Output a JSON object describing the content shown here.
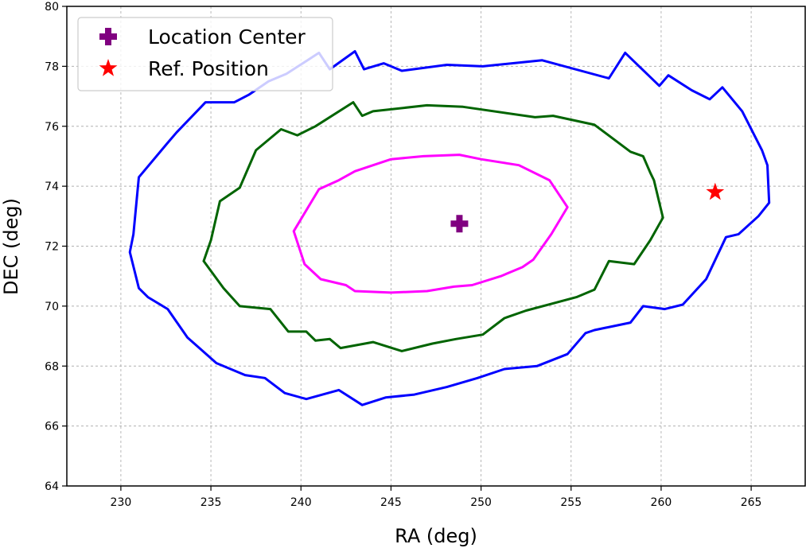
{
  "chart_data": {
    "type": "line",
    "title": "",
    "xlabel": "RA (deg)",
    "ylabel": "DEC (deg)",
    "xlim": [
      227,
      268
    ],
    "ylim": [
      64,
      80
    ],
    "xticks": [
      "230",
      "235",
      "240",
      "245",
      "250",
      "255",
      "260",
      "265"
    ],
    "yticks": [
      "64",
      "66",
      "68",
      "70",
      "72",
      "74",
      "76",
      "78",
      "80"
    ],
    "grid": true,
    "legend_position": "top-left",
    "series": [
      {
        "kind": "contour",
        "color": "#0000ff",
        "points": [
          [
            230.5,
            71.8
          ],
          [
            231.0,
            70.6
          ],
          [
            231.5,
            70.3
          ],
          [
            232.6,
            69.9
          ],
          [
            233.7,
            68.95
          ],
          [
            235.3,
            68.1
          ],
          [
            236.9,
            67.7
          ],
          [
            238.0,
            67.6
          ],
          [
            239.1,
            67.1
          ],
          [
            240.3,
            66.9
          ],
          [
            242.1,
            67.2
          ],
          [
            243.4,
            66.7
          ],
          [
            244.7,
            66.95
          ],
          [
            246.3,
            67.05
          ],
          [
            248.1,
            67.3
          ],
          [
            249.8,
            67.6
          ],
          [
            251.3,
            67.9
          ],
          [
            253.1,
            68.0
          ],
          [
            254.8,
            68.4
          ],
          [
            255.8,
            69.1
          ],
          [
            256.3,
            69.2
          ],
          [
            258.3,
            69.45
          ],
          [
            259.0,
            70.0
          ],
          [
            260.2,
            69.9
          ],
          [
            261.2,
            70.05
          ],
          [
            262.5,
            70.9
          ],
          [
            263.6,
            72.3
          ],
          [
            264.3,
            72.4
          ],
          [
            265.4,
            73.0
          ],
          [
            266.0,
            73.45
          ],
          [
            265.9,
            74.7
          ],
          [
            265.6,
            75.2
          ],
          [
            264.5,
            76.5
          ],
          [
            263.4,
            77.3
          ],
          [
            262.7,
            76.9
          ],
          [
            261.7,
            77.2
          ],
          [
            260.4,
            77.7
          ],
          [
            259.9,
            77.35
          ],
          [
            258.0,
            78.45
          ],
          [
            257.1,
            77.6
          ],
          [
            253.4,
            78.2
          ],
          [
            250.1,
            78.0
          ],
          [
            248.1,
            78.05
          ],
          [
            245.6,
            77.85
          ],
          [
            244.6,
            78.1
          ],
          [
            243.5,
            77.9
          ],
          [
            243.0,
            78.5
          ],
          [
            241.6,
            77.9
          ],
          [
            241.0,
            78.45
          ],
          [
            239.2,
            77.75
          ],
          [
            238.2,
            77.5
          ],
          [
            237.1,
            77.05
          ],
          [
            236.3,
            76.8
          ],
          [
            234.7,
            76.8
          ],
          [
            233.1,
            75.8
          ],
          [
            232.6,
            75.45
          ],
          [
            231.0,
            74.3
          ],
          [
            230.7,
            72.4
          ],
          [
            230.5,
            71.8
          ]
        ]
      },
      {
        "kind": "contour",
        "color": "#006400",
        "points": [
          [
            234.6,
            71.5
          ],
          [
            235.7,
            70.6
          ],
          [
            236.6,
            70.0
          ],
          [
            238.3,
            69.9
          ],
          [
            239.3,
            69.15
          ],
          [
            240.3,
            69.15
          ],
          [
            240.8,
            68.85
          ],
          [
            241.6,
            68.9
          ],
          [
            242.2,
            68.6
          ],
          [
            244.0,
            68.8
          ],
          [
            245.6,
            68.5
          ],
          [
            247.3,
            68.75
          ],
          [
            248.6,
            68.9
          ],
          [
            250.1,
            69.05
          ],
          [
            251.3,
            69.6
          ],
          [
            252.5,
            69.85
          ],
          [
            255.3,
            70.3
          ],
          [
            256.3,
            70.55
          ],
          [
            257.1,
            71.5
          ],
          [
            258.5,
            71.4
          ],
          [
            259.4,
            72.2
          ],
          [
            260.1,
            72.95
          ],
          [
            259.6,
            74.2
          ],
          [
            259.4,
            74.45
          ],
          [
            259.0,
            75.0
          ],
          [
            258.3,
            75.15
          ],
          [
            256.3,
            76.05
          ],
          [
            254.0,
            76.35
          ],
          [
            253.0,
            76.3
          ],
          [
            249.0,
            76.65
          ],
          [
            247.0,
            76.7
          ],
          [
            244.0,
            76.5
          ],
          [
            243.4,
            76.35
          ],
          [
            242.9,
            76.8
          ],
          [
            240.8,
            76.0
          ],
          [
            239.8,
            75.7
          ],
          [
            238.9,
            75.9
          ],
          [
            237.5,
            75.2
          ],
          [
            236.6,
            73.95
          ],
          [
            235.5,
            73.5
          ],
          [
            235.0,
            72.2
          ],
          [
            234.6,
            71.5
          ]
        ]
      },
      {
        "kind": "contour",
        "color": "#ff00ff",
        "points": [
          [
            239.6,
            72.5
          ],
          [
            240.2,
            71.4
          ],
          [
            241.1,
            70.9
          ],
          [
            242.5,
            70.7
          ],
          [
            243.0,
            70.5
          ],
          [
            245.0,
            70.45
          ],
          [
            247.0,
            70.5
          ],
          [
            248.5,
            70.65
          ],
          [
            249.5,
            70.7
          ],
          [
            251.1,
            71.0
          ],
          [
            252.3,
            71.3
          ],
          [
            252.9,
            71.55
          ],
          [
            253.9,
            72.4
          ],
          [
            254.8,
            73.3
          ],
          [
            253.8,
            74.2
          ],
          [
            252.1,
            74.7
          ],
          [
            250.0,
            74.9
          ],
          [
            248.8,
            75.05
          ],
          [
            246.8,
            75.0
          ],
          [
            245.0,
            74.9
          ],
          [
            243.0,
            74.5
          ],
          [
            242.1,
            74.2
          ],
          [
            241.0,
            73.9
          ],
          [
            240.3,
            73.2
          ],
          [
            239.6,
            72.5
          ]
        ]
      },
      {
        "kind": "marker",
        "name": "Location Center",
        "marker": "plus",
        "color": "#800080",
        "points": [
          [
            248.8,
            72.75
          ]
        ]
      },
      {
        "kind": "marker",
        "name": "Ref. Position",
        "marker": "star",
        "color": "#ff0000",
        "points": [
          [
            263.0,
            73.8
          ]
        ]
      }
    ]
  }
}
